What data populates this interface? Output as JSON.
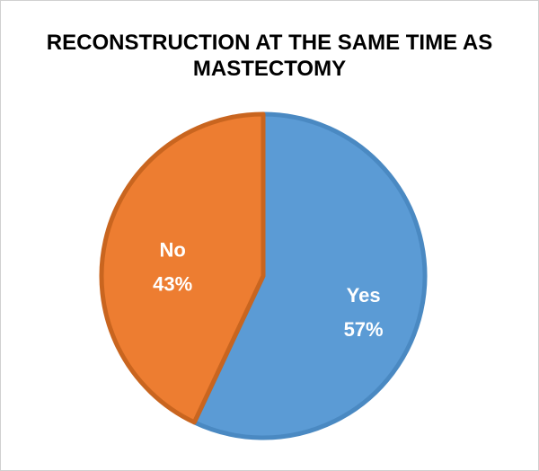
{
  "chart_data": {
    "type": "pie",
    "title_lines": [
      "RECONSTRUCTION AT THE SAME TIME AS",
      "MASTECTOMY"
    ],
    "slices": [
      {
        "label": "Yes",
        "value": 57,
        "percent_label": "57%",
        "color": "#5b9bd5",
        "edge": "#4a89c2"
      },
      {
        "label": "No",
        "value": 43,
        "percent_label": "43%",
        "color": "#ed7d31",
        "edge": "#c9651f"
      }
    ]
  }
}
